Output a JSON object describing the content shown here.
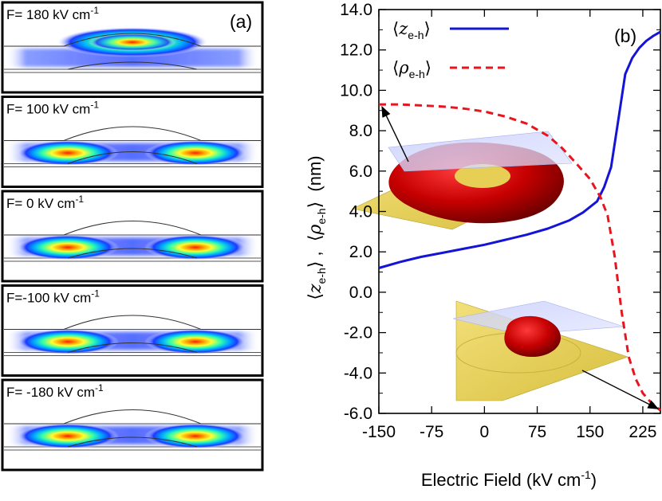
{
  "panel_a": {
    "tag": "(a)",
    "subpanels": [
      {
        "label": "F= 180 kV cm",
        "sup": "-1",
        "mode": "top"
      },
      {
        "label": "F= 100 kV cm",
        "sup": "-1",
        "mode": "ring"
      },
      {
        "label": "F= 0 kV cm",
        "sup": "-1",
        "mode": "ring"
      },
      {
        "label": "F=-100 kV cm",
        "sup": "-1",
        "mode": "ring"
      },
      {
        "label": "F= -180 kV cm",
        "sup": "-1",
        "mode": "ring"
      }
    ]
  },
  "chart_data": {
    "type": "line",
    "panel_tag": "(b)",
    "xlabel": "Electric Field (kV cm",
    "xlabel_sup": "-1",
    "xlabel_close": ")",
    "ylabel_parts": {
      "z_left": "⟨",
      "z_sym": "z",
      "z_sub": "e-h",
      "z_right": "⟩",
      "sep": " ,  ",
      "rho_left": "⟨",
      "rho_sym": "ρ",
      "rho_sub": "e-h",
      "rho_right": "⟩",
      "unit": "  (nm)"
    },
    "xlim": [
      -150,
      250
    ],
    "ylim": [
      -6,
      14
    ],
    "xticks": [
      -150,
      -75,
      0,
      75,
      150,
      225
    ],
    "xtick_labels": [
      "-150",
      "-75",
      "0",
      "75",
      "150",
      "225"
    ],
    "yticks": [
      -6,
      -4,
      -2,
      0,
      2,
      4,
      6,
      8,
      10,
      12,
      14
    ],
    "ytick_labels": [
      "-6.0",
      "-4.0",
      "-2.0",
      "0.0",
      "2.0",
      "4.0",
      "6.0",
      "8.0",
      "10.0",
      "12.0",
      "14.0"
    ],
    "grid": false,
    "legend_position": "top-left",
    "series": [
      {
        "name_sym": "z",
        "name_sub": "e-h",
        "color": "#1414d8",
        "dash": "solid",
        "x": [
          -150,
          -120,
          -90,
          -60,
          -30,
          0,
          30,
          60,
          90,
          120,
          140,
          160,
          170,
          180,
          190,
          200,
          210,
          220,
          230,
          240,
          250
        ],
        "y": [
          1.2,
          1.5,
          1.75,
          1.95,
          2.15,
          2.35,
          2.6,
          2.85,
          3.15,
          3.55,
          3.95,
          4.5,
          5.2,
          6.2,
          8.5,
          10.8,
          11.6,
          12.1,
          12.45,
          12.7,
          12.9
        ]
      },
      {
        "name_sym": "ρ",
        "name_sub": "e-h",
        "color": "#e8141e",
        "dash": "dashed",
        "x": [
          -150,
          -120,
          -90,
          -60,
          -30,
          0,
          30,
          60,
          90,
          110,
          130,
          150,
          165,
          175,
          185,
          195,
          205,
          215,
          225,
          235,
          245,
          250
        ],
        "y": [
          9.3,
          9.3,
          9.25,
          9.2,
          9.1,
          8.95,
          8.7,
          8.35,
          7.75,
          7.15,
          6.4,
          5.6,
          4.7,
          3.8,
          1.8,
          -1.0,
          -3.2,
          -4.3,
          -5.0,
          -5.4,
          -5.7,
          -5.85
        ]
      }
    ],
    "insets": [
      {
        "name": "ring-shaped exciton at negative field",
        "points_to": {
          "x": -150,
          "y": 9.3
        }
      },
      {
        "name": "compact exciton at high field",
        "points_to": {
          "x": 250,
          "y": -5.85
        }
      }
    ]
  }
}
